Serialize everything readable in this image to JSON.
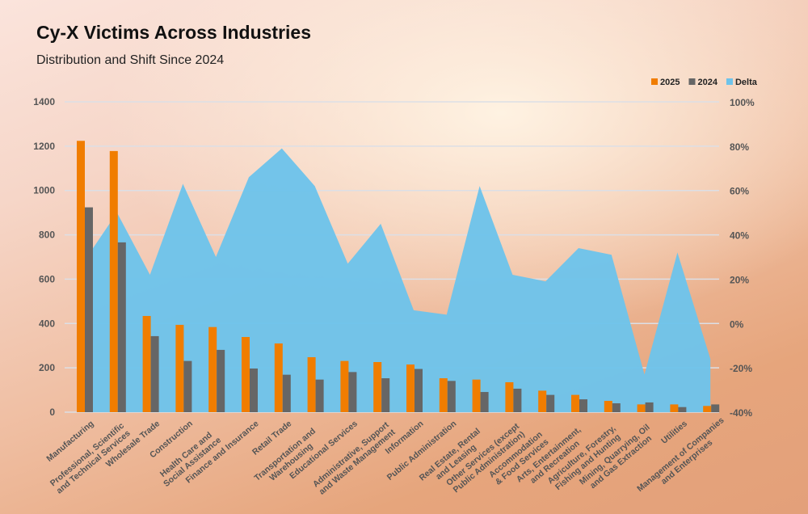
{
  "chart_data": {
    "type": "bar",
    "title": "Cy-X Victims Across Industries",
    "subtitle": "Distribution and Shift Since 2024",
    "legend_position": "top-right",
    "grid": true,
    "categories": [
      "Manufacturing",
      "Professional, Scientific and Technical Services",
      "Wholesale Trade",
      "Construction",
      "Health Care and Social Assistance",
      "Finance and Insurance",
      "Retail Trade",
      "Transportation and Warehousing",
      "Educational Services",
      "Administrative, Support and Waste Management",
      "Information",
      "Public Administration",
      "Real Estate, Rental and Leasing",
      "Other Services (except Public Administration)",
      "Accommodation & Food Services",
      "Arts, Entertainment, and Recreation",
      "Agriculture, Forestry, Fishing and Hunting",
      "Mining, Quarrying, Oil and Gas Extraction",
      "Utilities",
      "Management of Companies and Enterprises"
    ],
    "category_lines": [
      [
        "Manufacturing"
      ],
      [
        "Professional, Scientific",
        "and Technical Services"
      ],
      [
        "Wholesale Trade"
      ],
      [
        "Construction"
      ],
      [
        "Health Care and",
        "Social Assistance"
      ],
      [
        "Finance and Insurance"
      ],
      [
        "Retail Trade"
      ],
      [
        "Transportation and",
        "Warehousing"
      ],
      [
        "Educational Services"
      ],
      [
        "Administrative, Support",
        "and Waste Management"
      ],
      [
        "Information"
      ],
      [
        "Public Administration"
      ],
      [
        "Real Estate, Rental",
        "and Leasing"
      ],
      [
        "Other Services (except",
        "Public Administration)"
      ],
      [
        "Accommodation",
        "& Food Services"
      ],
      [
        "Arts, Entertainment,",
        "and Recreation"
      ],
      [
        "Agriculture, Forestry,",
        "Fishing and Hunting"
      ],
      [
        "Mining, Quarrying, Oil",
        "and Gas Extraction"
      ],
      [
        "Utilities"
      ],
      [
        "Management of Companies",
        "and Enterprises"
      ]
    ],
    "series": [
      {
        "name": "2025",
        "type": "bar",
        "axis": "left",
        "color": "#f07d00",
        "values": [
          1224,
          1178,
          434,
          394,
          384,
          339,
          310,
          248,
          231,
          226,
          215,
          153,
          147,
          135,
          97,
          78,
          51,
          35,
          35,
          28
        ]
      },
      {
        "name": "2024",
        "type": "bar",
        "axis": "left",
        "color": "#666666",
        "values": [
          924,
          766,
          343,
          231,
          281,
          197,
          169,
          147,
          181,
          153,
          195,
          141,
          91,
          106,
          78,
          58,
          40,
          44,
          23,
          35
        ]
      },
      {
        "name": "Delta",
        "type": "area",
        "axis": "right",
        "color": "#6ec3ea",
        "values": [
          28,
          50,
          22,
          63,
          30,
          66,
          79,
          62,
          27,
          45,
          6,
          4,
          62,
          22,
          19,
          34,
          31,
          -23,
          32,
          -16
        ]
      }
    ],
    "left_axis": {
      "range": [
        0,
        1400
      ],
      "ticks": [
        "0",
        "200",
        "400",
        "600",
        "800",
        "1000",
        "1200",
        "1400"
      ]
    },
    "right_axis": {
      "range": [
        -40,
        100
      ],
      "unit": "%",
      "ticks": [
        "-40%",
        "-20%",
        "0%",
        "20%",
        "40%",
        "60%",
        "80%",
        "100%"
      ]
    }
  }
}
